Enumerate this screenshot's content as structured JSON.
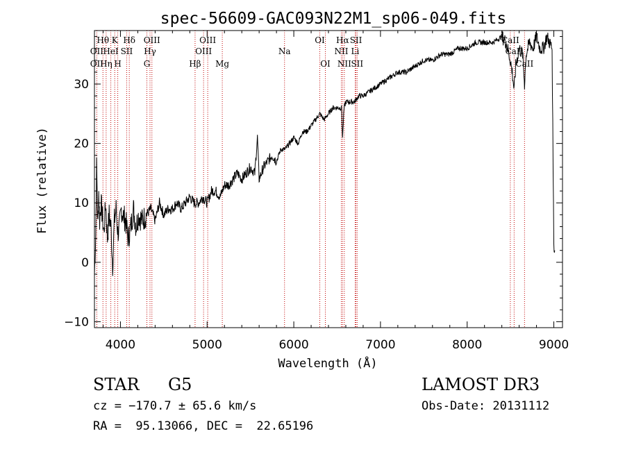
{
  "chart_data": {
    "type": "line",
    "title": "spec-56609-GAC093N22M1_sp06-049.fits",
    "xlabel": "Wavelength (Å)",
    "ylabel": "Flux (relative)",
    "xlim": [
      3700,
      9100
    ],
    "ylim": [
      -11,
      39
    ],
    "x_ticks": [
      4000,
      5000,
      6000,
      7000,
      8000,
      9000
    ],
    "x_tick_labels": [
      "4000",
      "5000",
      "6000",
      "7000",
      "8000",
      "9000"
    ],
    "y_ticks": [
      -10,
      0,
      10,
      20,
      30
    ],
    "y_tick_labels": [
      "−10",
      "0",
      "10",
      "20",
      "30"
    ],
    "series": [
      {
        "name": "flux",
        "x": [
          3700,
          3715,
          3725,
          3740,
          3750,
          3760,
          3775,
          3790,
          3810,
          3830,
          3850,
          3870,
          3890,
          3910,
          3930,
          3950,
          3970,
          3990,
          4010,
          4030,
          4060,
          4090,
          4120,
          4150,
          4180,
          4210,
          4250,
          4300,
          4350,
          4400,
          4450,
          4500,
          4550,
          4600,
          4650,
          4700,
          4750,
          4800,
          4850,
          4900,
          4950,
          5000,
          5050,
          5100,
          5150,
          5200,
          5250,
          5300,
          5350,
          5400,
          5450,
          5500,
          5550,
          5580,
          5600,
          5650,
          5700,
          5750,
          5800,
          5850,
          5900,
          5950,
          6000,
          6050,
          6100,
          6150,
          6200,
          6250,
          6300,
          6350,
          6400,
          6450,
          6500,
          6550,
          6563,
          6580,
          6600,
          6650,
          6700,
          6750,
          6800,
          6900,
          7000,
          7100,
          7200,
          7300,
          7400,
          7500,
          7600,
          7700,
          7800,
          7900,
          8000,
          8100,
          8200,
          8300,
          8400,
          8450,
          8498,
          8520,
          8542,
          8560,
          8600,
          8640,
          8662,
          8680,
          8720,
          8760,
          8800,
          8840,
          8880,
          8920,
          8950,
          8980,
          9000,
          9010
        ],
        "values": [
          -2,
          5,
          16,
          6,
          12,
          7,
          10,
          8,
          5,
          10,
          4,
          8,
          6,
          -0.5,
          7,
          9,
          5,
          6,
          9,
          8,
          7,
          4,
          6,
          9,
          6,
          8,
          7,
          8,
          9,
          7,
          10,
          8,
          9,
          9,
          10,
          9,
          10,
          11,
          10,
          10,
          11,
          10,
          12,
          12,
          11,
          13,
          13,
          14,
          15,
          14,
          15,
          16,
          15,
          21,
          14,
          16,
          17,
          18,
          17,
          19,
          19,
          20,
          21,
          20,
          22,
          22,
          23,
          24,
          25,
          24,
          25,
          26,
          26,
          26,
          21,
          26,
          27,
          27,
          27,
          28,
          28,
          29,
          30,
          31,
          32,
          32,
          33,
          34,
          34,
          35,
          35,
          36,
          36,
          37,
          37,
          37,
          38,
          37,
          34,
          32,
          29,
          33,
          36,
          35,
          30,
          35,
          37,
          36,
          38,
          36,
          36,
          38,
          37,
          36,
          3,
          2
        ]
      }
    ],
    "lines": [
      {
        "label": "CaII K",
        "row1": "K",
        "row2": "",
        "row3": "",
        "x": 3934
      },
      {
        "label": "CaII H",
        "row1": "",
        "row2": "",
        "row3": "H",
        "x": 3969
      },
      {
        "label": "OII",
        "row1": "",
        "row2": "OII",
        "row3": "OII",
        "x": 3727
      },
      {
        "label": "Hθ",
        "row1": "Hθ",
        "row2": "",
        "row3": "",
        "x": 3798
      },
      {
        "label": "HeI",
        "row1": "",
        "row2": "HeI",
        "row3": "",
        "x": 3889
      },
      {
        "label": "Hη",
        "row1": "",
        "row2": "",
        "row3": "Hη",
        "x": 3835
      },
      {
        "label": "SII",
        "row1": "",
        "row2": "SII",
        "row3": "",
        "x": 4072
      },
      {
        "label": "Hδ",
        "row1": "Hδ",
        "row2": "",
        "row3": "",
        "x": 4102
      },
      {
        "label": "OIII",
        "row1": "OIII",
        "row2": "",
        "row3": "",
        "x": 4363
      },
      {
        "label": "Hγ",
        "row1": "",
        "row2": "Hγ",
        "row3": "",
        "x": 4341
      },
      {
        "label": "G",
        "row1": "",
        "row2": "",
        "row3": "G",
        "x": 4305
      },
      {
        "label": "Hβ",
        "row1": "",
        "row2": "",
        "row3": "Hβ",
        "x": 4861
      },
      {
        "label": "OIII",
        "row1": "OIII",
        "row2": "",
        "row3": "",
        "x": 5007
      },
      {
        "label": "OIII",
        "row1": "",
        "row2": "OIII",
        "row3": "",
        "x": 4959
      },
      {
        "label": "Mg",
        "row1": "",
        "row2": "",
        "row3": "Mg",
        "x": 5175
      },
      {
        "label": "Na",
        "row1": "",
        "row2": "Na",
        "row3": "",
        "x": 5893
      },
      {
        "label": "OI",
        "row1": "OI",
        "row2": "",
        "row3": "",
        "x": 6300
      },
      {
        "label": "OI",
        "row1": "",
        "row2": "",
        "row3": "OI",
        "x": 6364
      },
      {
        "label": "Hα",
        "row1": "Hα",
        "row2": "",
        "row3": "",
        "x": 6563
      },
      {
        "label": "NII",
        "row1": "",
        "row2": "NII",
        "row3": "",
        "x": 6548
      },
      {
        "label": "NII",
        "row1": "",
        "row2": "",
        "row3": "NII",
        "x": 6583
      },
      {
        "label": "SII",
        "row1": "SII",
        "row2": "",
        "row3": "",
        "x": 6717
      },
      {
        "label": "Li",
        "row1": "",
        "row2": "Li",
        "row3": "",
        "x": 6708
      },
      {
        "label": "SII",
        "row1": "",
        "row2": "",
        "row3": "SII",
        "x": 6731
      },
      {
        "label": "CaII",
        "row1": "CaII",
        "row2": "",
        "row3": "",
        "x": 8498
      },
      {
        "label": "CaII",
        "row1": "",
        "row2": "CaII",
        "row3": "",
        "x": 8542
      },
      {
        "label": "CaII",
        "row1": "",
        "row2": "",
        "row3": "CaII",
        "x": 8662
      }
    ],
    "colors": {
      "spectrum": "#000000",
      "lines": "#c00000",
      "axes": "#000000"
    }
  },
  "info": {
    "class_label": "STAR",
    "subclass": "G5",
    "survey": "LAMOST DR3",
    "redshift": "cz = −170.7 ± 65.6 km/s",
    "obs_date": "Obs-Date: 20131112",
    "coords": "RA =  95.13066, DEC =  22.65196"
  }
}
